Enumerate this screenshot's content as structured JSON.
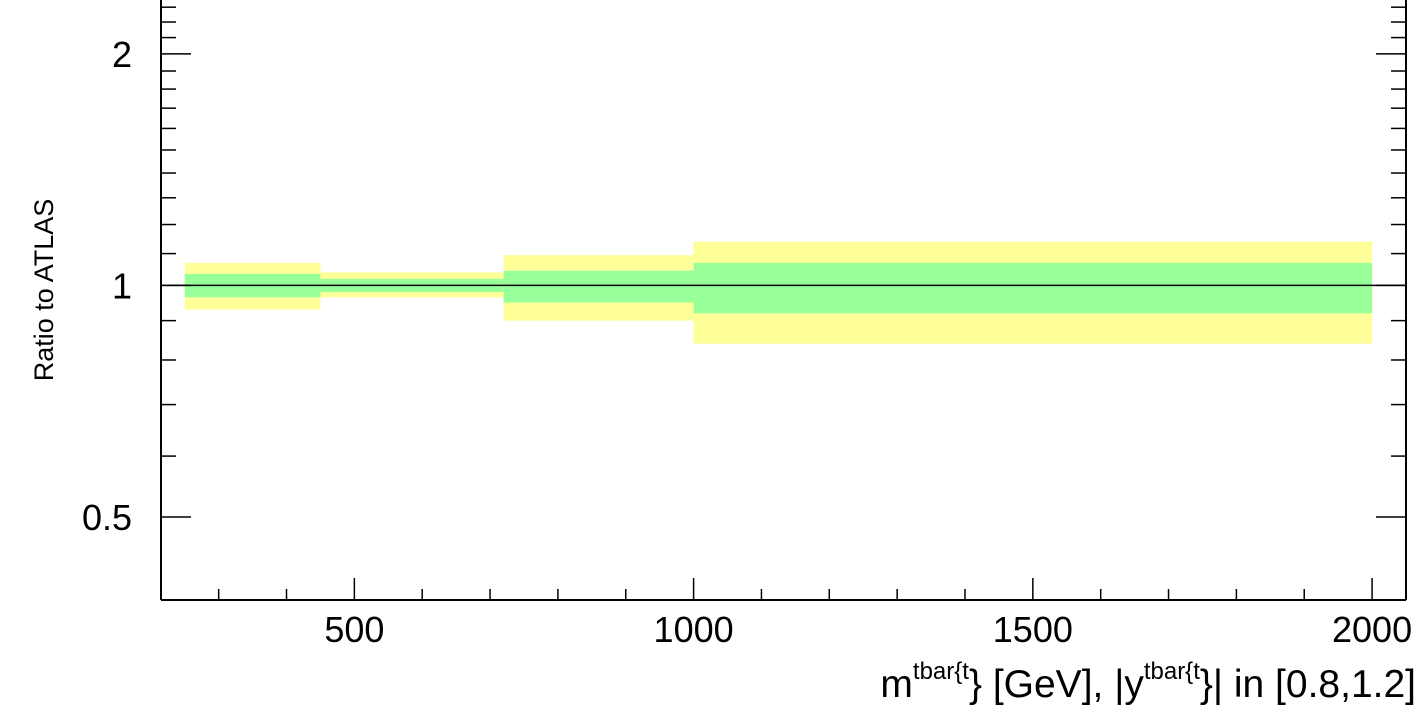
{
  "chart_data": {
    "type": "area",
    "ylabel": "Ratio to ATLAS",
    "xlabel": {
      "part1": "m",
      "sup1": "tbar{t",
      "part2": "} [GeV], |y",
      "sup2": "tbar{t",
      "part3": "}| in [0.8,1.2]"
    },
    "x_scale": "linear",
    "y_scale": "log",
    "xlim": [
      215,
      2050
    ],
    "ylim": [
      0.39,
      2.35
    ],
    "x_ticks": [
      500,
      1000,
      1500,
      2000
    ],
    "x_tick_labels": [
      "500",
      "1000",
      "1500",
      "2000"
    ],
    "y_ticks": [
      0.5,
      1,
      2
    ],
    "y_tick_labels": [
      "0.5",
      "1",
      "2"
    ],
    "reference_line": 1,
    "bins": [
      {
        "x_low": 250,
        "x_high": 450,
        "inner": [
          0.965,
          1.035
        ],
        "outer": [
          0.93,
          1.07
        ]
      },
      {
        "x_low": 450,
        "x_high": 720,
        "inner": [
          0.98,
          1.02
        ],
        "outer": [
          0.965,
          1.04
        ]
      },
      {
        "x_low": 720,
        "x_high": 1000,
        "inner": [
          0.95,
          1.045
        ],
        "outer": [
          0.9,
          1.095
        ]
      },
      {
        "x_low": 1000,
        "x_high": 2000,
        "inner": [
          0.92,
          1.07
        ],
        "outer": [
          0.84,
          1.14
        ]
      }
    ],
    "colors": {
      "inner_band": "#99ff99",
      "outer_band": "#ffff99",
      "axis": "#000000"
    }
  }
}
